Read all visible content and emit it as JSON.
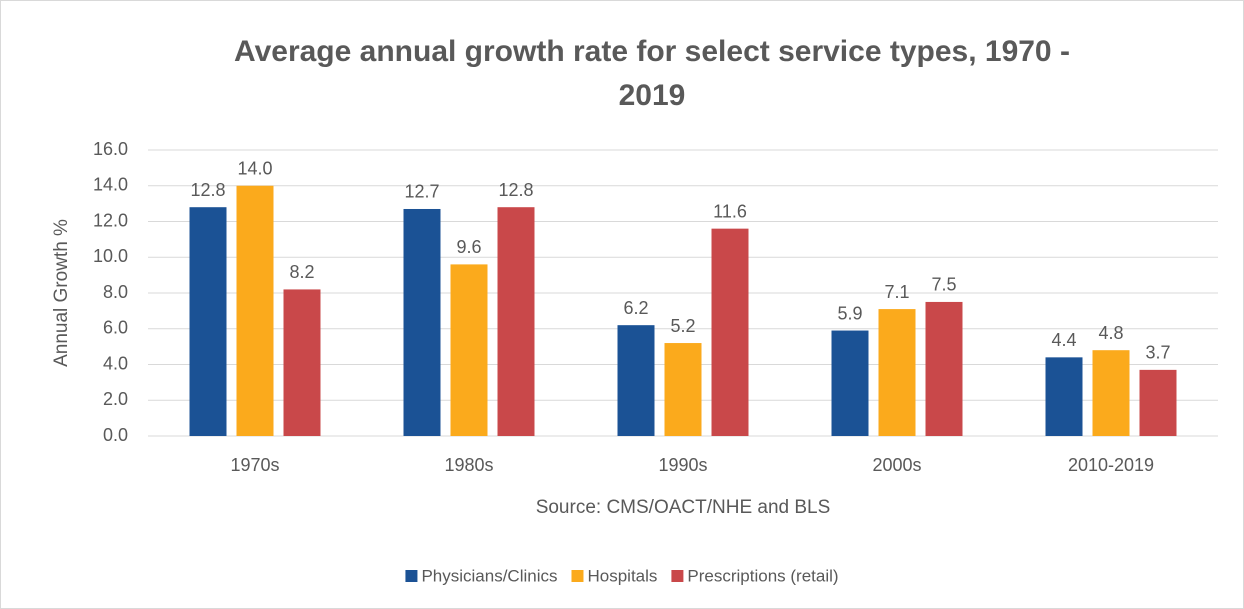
{
  "chart_data": {
    "type": "bar",
    "title": "Average annual growth rate for select service types, 1970 - 2019",
    "x_label": "Source: CMS/OACT/NHE and BLS",
    "y_label": "Annual Growth %",
    "categories": [
      "1970s",
      "1980s",
      "1990s",
      "2000s",
      "2010-2019"
    ],
    "series": [
      {
        "name": "Physicians/Clinics",
        "color": "#1b5295",
        "values": [
          12.8,
          12.7,
          6.2,
          5.9,
          4.4
        ],
        "value_labels": [
          "12.8",
          "12.7",
          "6.2",
          "5.9",
          "4.4"
        ]
      },
      {
        "name": "Hospitals",
        "color": "#fbaa1c",
        "values": [
          14.0,
          9.6,
          5.2,
          7.1,
          4.8
        ],
        "value_labels": [
          "14.0",
          "9.6",
          "5.2",
          "7.1",
          "4.8"
        ]
      },
      {
        "name": "Prescriptions (retail)",
        "color": "#c9484a",
        "values": [
          8.2,
          12.8,
          11.6,
          7.5,
          3.7
        ],
        "value_labels": [
          "8.2",
          "12.8",
          "11.6",
          "7.5",
          "3.7"
        ]
      }
    ],
    "ylim": [
      0,
      16
    ],
    "yticks": [
      {
        "value": 0,
        "label": "0.0"
      },
      {
        "value": 2,
        "label": "2.0"
      },
      {
        "value": 4,
        "label": "4.0"
      },
      {
        "value": 6,
        "label": "6.0"
      },
      {
        "value": 8,
        "label": "8.0"
      },
      {
        "value": 10,
        "label": "10.0"
      },
      {
        "value": 12,
        "label": "12.0"
      },
      {
        "value": 14,
        "label": "14.0"
      },
      {
        "value": 16,
        "label": "16.0"
      }
    ],
    "grid": true,
    "legend": "bottom"
  }
}
